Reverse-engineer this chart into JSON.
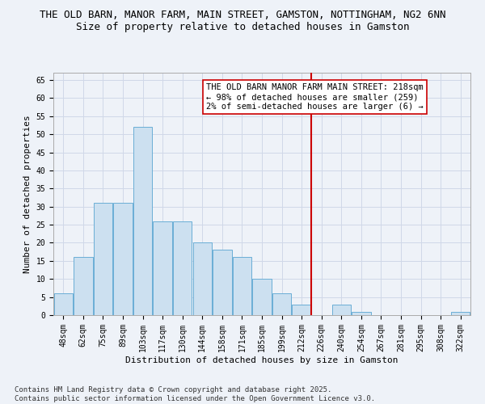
{
  "title": "THE OLD BARN, MANOR FARM, MAIN STREET, GAMSTON, NOTTINGHAM, NG2 6NN",
  "subtitle": "Size of property relative to detached houses in Gamston",
  "xlabel": "Distribution of detached houses by size in Gamston",
  "ylabel": "Number of detached properties",
  "categories": [
    "48sqm",
    "62sqm",
    "75sqm",
    "89sqm",
    "103sqm",
    "117sqm",
    "130sqm",
    "144sqm",
    "158sqm",
    "171sqm",
    "185sqm",
    "199sqm",
    "212sqm",
    "226sqm",
    "240sqm",
    "254sqm",
    "267sqm",
    "281sqm",
    "295sqm",
    "308sqm",
    "322sqm"
  ],
  "values": [
    6,
    16,
    31,
    31,
    52,
    26,
    26,
    20,
    18,
    16,
    10,
    6,
    3,
    0,
    3,
    1,
    0,
    0,
    0,
    0,
    1
  ],
  "bar_color": "#cce0f0",
  "bar_edge_color": "#6aaed6",
  "grid_color": "#d0d8e8",
  "background_color": "#eef2f8",
  "vline_x": 12.5,
  "vline_color": "#cc0000",
  "annotation_text": "THE OLD BARN MANOR FARM MAIN STREET: 218sqm\n← 98% of detached houses are smaller (259)\n2% of semi-detached houses are larger (6) →",
  "annotation_box_color": "#ffffff",
  "annotation_box_edge": "#cc0000",
  "ylim": [
    0,
    67
  ],
  "yticks": [
    0,
    5,
    10,
    15,
    20,
    25,
    30,
    35,
    40,
    45,
    50,
    55,
    60,
    65
  ],
  "footnote": "Contains HM Land Registry data © Crown copyright and database right 2025.\nContains public sector information licensed under the Open Government Licence v3.0.",
  "title_fontsize": 9,
  "subtitle_fontsize": 9,
  "axis_label_fontsize": 8,
  "tick_fontsize": 7,
  "annotation_fontsize": 7.5,
  "footnote_fontsize": 6.5
}
